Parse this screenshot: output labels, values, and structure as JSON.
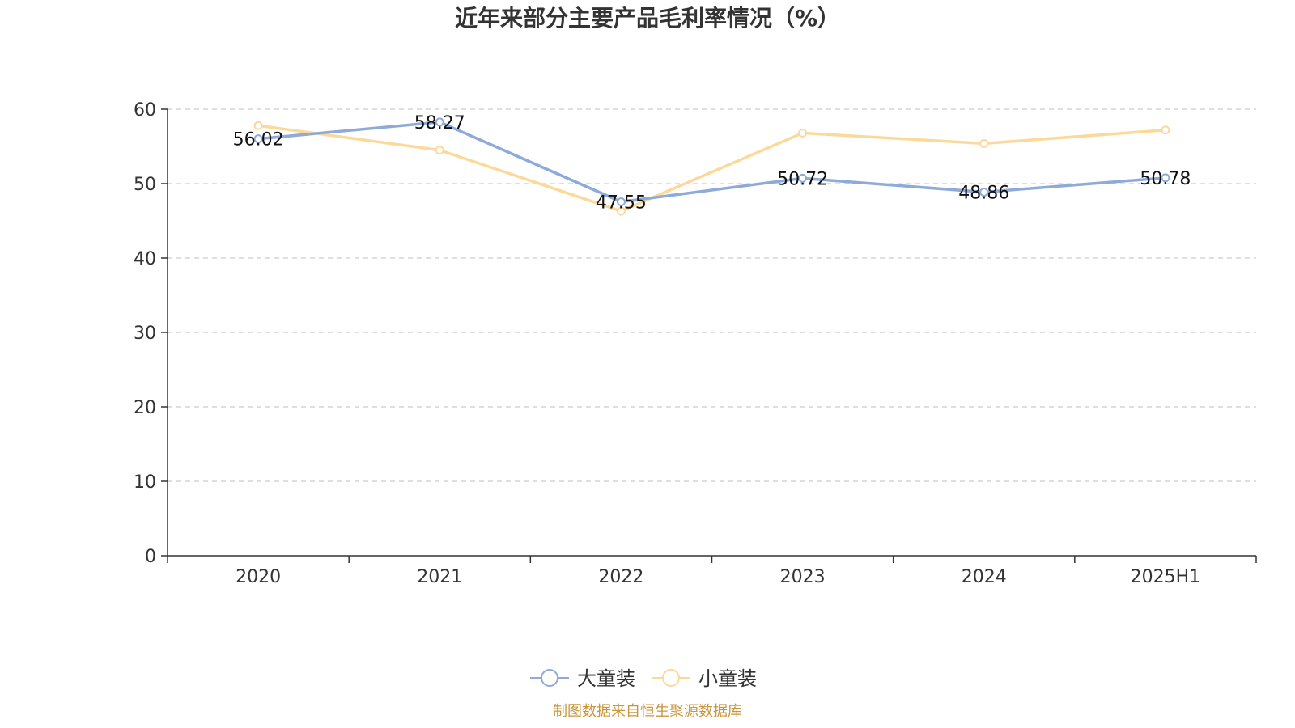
{
  "chart_data": {
    "type": "line",
    "title": "近年来部分主要产品毛利率情况（%）",
    "categories": [
      "2020",
      "2021",
      "2022",
      "2023",
      "2024",
      "2025H1"
    ],
    "series": [
      {
        "name": "大童装",
        "color": "#8eaad8",
        "values": [
          56.02,
          58.27,
          47.55,
          50.72,
          48.86,
          50.78
        ],
        "labels": [
          "56.02",
          "58.27",
          "47.55",
          "50.72",
          "48.86",
          "50.78"
        ]
      },
      {
        "name": "小童装",
        "color": "#fcd999",
        "values": [
          57.8,
          54.5,
          46.3,
          56.8,
          55.4,
          57.2
        ]
      }
    ],
    "ylim": [
      0,
      60
    ],
    "yticks": [
      "0",
      "10",
      "20",
      "30",
      "40",
      "50",
      "60"
    ],
    "grid": true,
    "legend_position": "bottom-center"
  },
  "source": {
    "text": "制图数据来自恒生聚源数据库",
    "color": "#c8963c"
  }
}
